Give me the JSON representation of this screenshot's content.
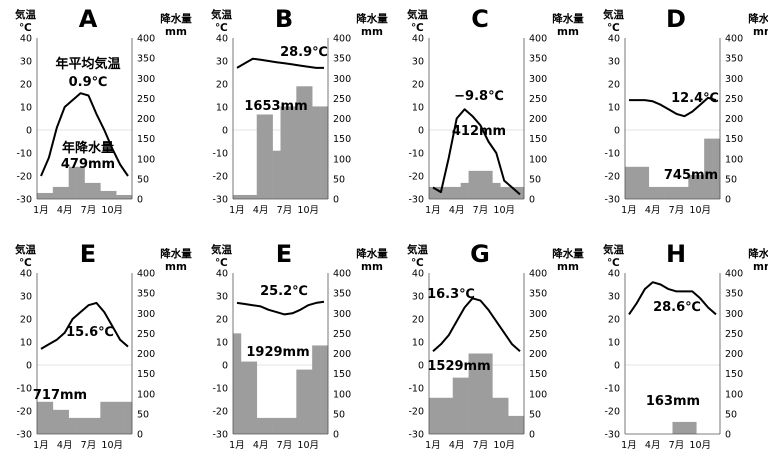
{
  "chart_data": [
    {
      "type": "bar+line",
      "title": "A",
      "left_axis_label": [
        "気温",
        "℃"
      ],
      "right_axis_label": [
        "降水量",
        "mm"
      ],
      "ylim_temp": [
        -30,
        40
      ],
      "ylim_precip": [
        0,
        400
      ],
      "temp_ticks": [
        "40",
        "30",
        "20",
        "10",
        "0",
        "-10",
        "-20",
        "-30"
      ],
      "precip_ticks": [
        "400",
        "350",
        "300",
        "250",
        "200",
        "150",
        "100",
        "50",
        "0"
      ],
      "xtick_labels": [
        "1月",
        "4月",
        "7月",
        "10月"
      ],
      "temperature": [
        -20,
        -12,
        1,
        10,
        13,
        16,
        15,
        7,
        0,
        -8,
        -15,
        -20
      ],
      "precipitation": [
        15,
        15,
        30,
        30,
        80,
        80,
        40,
        40,
        20,
        20,
        10,
        10
      ],
      "annotations": [
        "年平均気温",
        "0.9℃",
        "年降水量",
        "479mm"
      ]
    },
    {
      "type": "bar+line",
      "title": "B",
      "left_axis_label": [
        "気温",
        "℃"
      ],
      "right_axis_label": [
        "降水量",
        "mm"
      ],
      "ylim_temp": [
        -30,
        40
      ],
      "ylim_precip": [
        0,
        400
      ],
      "temp_ticks": [
        "40",
        "30",
        "20",
        "10",
        "0",
        "-10",
        "-20",
        "-30"
      ],
      "precip_ticks": [
        "400",
        "350",
        "300",
        "250",
        "200",
        "150",
        "100",
        "50",
        "0"
      ],
      "xtick_labels": [
        "1月",
        "4月",
        "7月",
        "10月"
      ],
      "temperature": [
        27,
        29,
        31,
        30.5,
        30,
        29.5,
        29,
        28.5,
        28,
        27.5,
        27,
        27
      ],
      "precipitation": [
        10,
        10,
        10,
        210,
        210,
        120,
        230,
        230,
        280,
        280,
        230,
        230
      ],
      "annotations": [
        "28.9℃",
        "1653mm"
      ]
    },
    {
      "type": "bar+line",
      "title": "C",
      "left_axis_label": [
        "気温",
        "℃"
      ],
      "right_axis_label": [
        "降水量",
        "mm"
      ],
      "ylim_temp": [
        -30,
        40
      ],
      "ylim_precip": [
        0,
        400
      ],
      "temp_ticks": [
        "40",
        "30",
        "20",
        "10",
        "0",
        "-10",
        "-20",
        "-30"
      ],
      "precip_ticks": [
        "400",
        "350",
        "300",
        "250",
        "200",
        "150",
        "100",
        "50",
        "0"
      ],
      "xtick_labels": [
        "1月",
        "4月",
        "7月",
        "10月"
      ],
      "temperature": [
        -25,
        -27,
        -12,
        5,
        9,
        6,
        2,
        -5,
        -10,
        -22,
        -25,
        -28
      ],
      "precipitation": [
        30,
        30,
        30,
        30,
        40,
        70,
        70,
        70,
        40,
        30,
        30,
        30
      ],
      "annotations": [
        "−9.8℃",
        "412mm"
      ]
    },
    {
      "type": "bar+line",
      "title": "D",
      "left_axis_label": [
        "気温",
        "℃"
      ],
      "right_axis_label": [
        "降水量",
        "mm"
      ],
      "ylim_temp": [
        -30,
        40
      ],
      "ylim_precip": [
        0,
        400
      ],
      "temp_ticks": [
        "40",
        "30",
        "20",
        "10",
        "0",
        "-10",
        "-20",
        "-30"
      ],
      "precip_ticks": [
        "400",
        "350",
        "300",
        "250",
        "200",
        "150",
        "100",
        "50",
        "0"
      ],
      "xtick_labels": [
        "1月",
        "4月",
        "7月",
        "10月"
      ],
      "temperature": [
        13,
        13,
        13,
        12.5,
        11,
        9,
        7,
        6,
        8,
        11,
        14,
        13
      ],
      "precipitation": [
        80,
        80,
        80,
        30,
        30,
        30,
        30,
        30,
        60,
        60,
        150,
        150
      ],
      "annotations": [
        "12.4℃",
        "745mm"
      ]
    },
    {
      "type": "bar+line",
      "title": "E",
      "left_axis_label": [
        "気温",
        "℃"
      ],
      "right_axis_label": [
        "降水量",
        "mm"
      ],
      "ylim_temp": [
        -30,
        40
      ],
      "ylim_precip": [
        0,
        400
      ],
      "temp_ticks": [
        "40",
        "30",
        "20",
        "10",
        "0",
        "-10",
        "-20",
        "-30"
      ],
      "precip_ticks": [
        "400",
        "350",
        "300",
        "250",
        "200",
        "150",
        "100",
        "50",
        "0"
      ],
      "xtick_labels": [
        "1月",
        "4月",
        "7月",
        "10月"
      ],
      "temperature": [
        7,
        9,
        11,
        14,
        20,
        23,
        26,
        27,
        23,
        17,
        11,
        8
      ],
      "precipitation": [
        80,
        80,
        60,
        60,
        40,
        40,
        40,
        40,
        80,
        80,
        80,
        80
      ],
      "annotations": [
        "15.6℃",
        "717mm"
      ]
    },
    {
      "type": "bar+line",
      "title": "E",
      "left_axis_label": [
        "気温",
        "℃"
      ],
      "right_axis_label": [
        "降水量",
        "mm"
      ],
      "ylim_temp": [
        -30,
        40
      ],
      "ylim_precip": [
        0,
        400
      ],
      "temp_ticks": [
        "40",
        "30",
        "20",
        "10",
        "0",
        "-10",
        "-20",
        "-30"
      ],
      "precip_ticks": [
        "400",
        "350",
        "300",
        "250",
        "200",
        "150",
        "100",
        "50",
        "0"
      ],
      "xtick_labels": [
        "1月",
        "4月",
        "7月",
        "10月"
      ],
      "temperature": [
        27,
        26.5,
        26,
        25.5,
        24,
        23,
        22,
        22.5,
        24,
        26,
        27,
        27.5
      ],
      "precipitation": [
        250,
        180,
        180,
        40,
        40,
        40,
        40,
        40,
        160,
        160,
        220,
        220
      ],
      "annotations": [
        "25.2℃",
        "1929mm"
      ]
    },
    {
      "type": "bar+line",
      "title": "G",
      "left_axis_label": [
        "気温",
        "℃"
      ],
      "right_axis_label": [
        "降水量",
        "mm"
      ],
      "ylim_temp": [
        -30,
        40
      ],
      "ylim_precip": [
        0,
        400
      ],
      "temp_ticks": [
        "40",
        "30",
        "20",
        "10",
        "0",
        "-10",
        "-20",
        "-30"
      ],
      "precip_ticks": [
        "400",
        "350",
        "300",
        "250",
        "200",
        "150",
        "100",
        "50",
        "0"
      ],
      "xtick_labels": [
        "1月",
        "4月",
        "7月",
        "10月"
      ],
      "temperature": [
        6,
        9,
        13,
        19,
        25,
        29,
        28,
        24,
        19,
        14,
        9,
        6
      ],
      "precipitation": [
        90,
        90,
        90,
        140,
        140,
        200,
        200,
        200,
        90,
        90,
        45,
        45
      ],
      "annotations": [
        "16.3℃",
        "1529mm"
      ]
    },
    {
      "type": "bar+line",
      "title": "H",
      "left_axis_label": [
        "気温",
        "℃"
      ],
      "right_axis_label": [
        "降水量",
        "mm"
      ],
      "ylim_temp": [
        -30,
        40
      ],
      "ylim_precip": [
        0,
        400
      ],
      "temp_ticks": [
        "40",
        "30",
        "20",
        "10",
        "0",
        "-10",
        "-20",
        "-30"
      ],
      "precip_ticks": [
        "400",
        "350",
        "300",
        "250",
        "200",
        "150",
        "100",
        "50",
        "0"
      ],
      "xtick_labels": [
        "1月",
        "4月",
        "7月",
        "10月"
      ],
      "temperature": [
        22,
        27,
        33,
        36,
        35,
        33,
        32,
        32,
        32,
        29,
        25,
        22
      ],
      "precipitation": [
        0,
        0,
        0,
        0,
        0,
        0,
        30,
        30,
        30,
        0,
        0,
        0
      ],
      "annotations": [
        "28.6℃",
        "163mm"
      ]
    }
  ]
}
